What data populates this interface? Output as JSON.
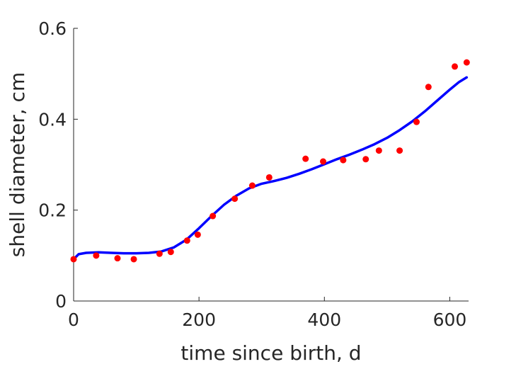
{
  "chart_data": {
    "type": "scatter",
    "xlabel": "time since birth, d",
    "ylabel": "shell diameter, cm",
    "xlim": [
      0,
      630
    ],
    "ylim": [
      0,
      0.6
    ],
    "xticks": [
      0,
      200,
      400,
      600
    ],
    "xtick_labels": [
      "0",
      "200",
      "400",
      "600"
    ],
    "yticks": [
      0,
      0.2,
      0.4,
      0.6
    ],
    "ytick_labels": [
      "0",
      "0.2",
      "0.4",
      "0.6"
    ],
    "grid": false,
    "colors": {
      "points": "#ff0000",
      "fit": "#0000ff",
      "axes": "#262626"
    },
    "points": [
      [
        0,
        0.092
      ],
      [
        36,
        0.1
      ],
      [
        70,
        0.094
      ],
      [
        96,
        0.092
      ],
      [
        137,
        0.104
      ],
      [
        155,
        0.108
      ],
      [
        181,
        0.133
      ],
      [
        198,
        0.146
      ],
      [
        222,
        0.187
      ],
      [
        257,
        0.225
      ],
      [
        285,
        0.254
      ],
      [
        312,
        0.272
      ],
      [
        370,
        0.313
      ],
      [
        398,
        0.307
      ],
      [
        430,
        0.31
      ],
      [
        466,
        0.312
      ],
      [
        487,
        0.331
      ],
      [
        520,
        0.331
      ],
      [
        547,
        0.394
      ],
      [
        566,
        0.471
      ],
      [
        608,
        0.516
      ],
      [
        627,
        0.525
      ]
    ],
    "fit_curve": [
      [
        0,
        0.092
      ],
      [
        8,
        0.103
      ],
      [
        20,
        0.106
      ],
      [
        40,
        0.107
      ],
      [
        60,
        0.106
      ],
      [
        80,
        0.105
      ],
      [
        100,
        0.105
      ],
      [
        120,
        0.106
      ],
      [
        140,
        0.109
      ],
      [
        160,
        0.118
      ],
      [
        180,
        0.135
      ],
      [
        200,
        0.16
      ],
      [
        220,
        0.187
      ],
      [
        240,
        0.212
      ],
      [
        260,
        0.232
      ],
      [
        280,
        0.248
      ],
      [
        300,
        0.258
      ],
      [
        320,
        0.264
      ],
      [
        340,
        0.271
      ],
      [
        360,
        0.28
      ],
      [
        380,
        0.29
      ],
      [
        400,
        0.301
      ],
      [
        420,
        0.312
      ],
      [
        440,
        0.322
      ],
      [
        460,
        0.333
      ],
      [
        480,
        0.345
      ],
      [
        500,
        0.359
      ],
      [
        520,
        0.376
      ],
      [
        540,
        0.395
      ],
      [
        560,
        0.417
      ],
      [
        580,
        0.441
      ],
      [
        600,
        0.465
      ],
      [
        615,
        0.482
      ],
      [
        627,
        0.492
      ]
    ]
  }
}
